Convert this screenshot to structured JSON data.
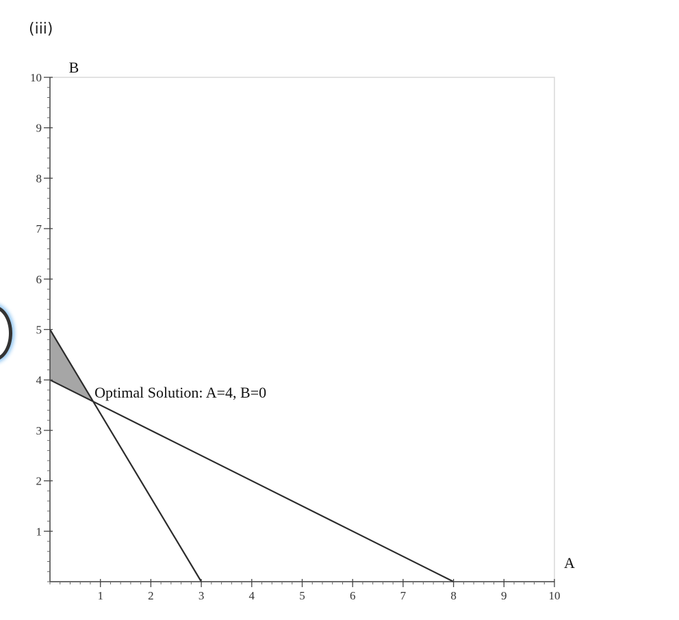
{
  "part_label": "(iii)",
  "chart_data": {
    "type": "line",
    "xlabel": "A",
    "ylabel": "B",
    "xlim": [
      0,
      10
    ],
    "ylim": [
      0,
      10
    ],
    "xticks": [
      1,
      2,
      3,
      4,
      5,
      6,
      7,
      8,
      9,
      10
    ],
    "yticks": [
      1,
      2,
      3,
      4,
      5,
      6,
      7,
      8,
      9,
      10
    ],
    "series": [
      {
        "points": [
          [
            0,
            5
          ],
          [
            3,
            0
          ]
        ],
        "color": "#2b2b2b"
      },
      {
        "points": [
          [
            0,
            4
          ],
          [
            8,
            0
          ]
        ],
        "color": "#2b2b2b"
      }
    ],
    "feasible_region": {
      "points": [
        [
          0,
          4
        ],
        [
          0,
          5
        ],
        [
          0.857,
          3.571
        ]
      ],
      "color": "#a6a6a6"
    },
    "annotation": {
      "text": "Optimal Solution: A=4, B=0",
      "point": [
        0.857,
        3.571
      ]
    },
    "grid": false,
    "frame_color": "#d9d9d9"
  }
}
